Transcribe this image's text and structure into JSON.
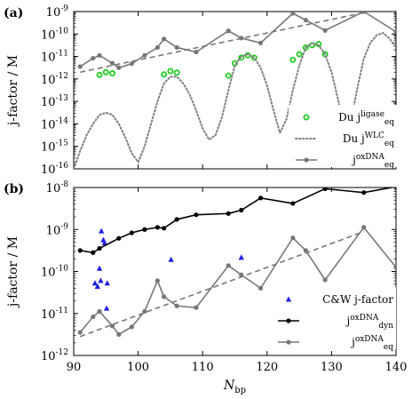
{
  "chart_data": [
    {
      "panel_label": "(a)",
      "type": "line",
      "ylabel": "j-factor / M",
      "xlabel": "",
      "xlim": [
        90,
        140
      ],
      "ylim_log10": [
        -16,
        -9
      ],
      "xscale": "linear",
      "yscale": "log",
      "x_ticks": [],
      "y_tick_labels": [
        "10^-16",
        "10^-15",
        "10^-14",
        "10^-13",
        "10^-12",
        "10^-11",
        "10^-10",
        "10^-9"
      ],
      "legend_position": "bottom-right",
      "series": [
        {
          "name": "Du j_eq^ligase",
          "legend_main": "Du j",
          "legend_sub": "eq",
          "legend_sup": "ligase",
          "style": "scatter-circle-open",
          "color": "#22cc22",
          "x": [
            94,
            95,
            96,
            104,
            105,
            106,
            114,
            115,
            116,
            117,
            118,
            124,
            125,
            126,
            127,
            128,
            129
          ],
          "y_log10": [
            -11.82,
            -11.7,
            -11.75,
            -11.8,
            -11.65,
            -11.72,
            -11.85,
            -11.3,
            -11.05,
            -10.95,
            -11.05,
            -11.15,
            -10.9,
            -10.6,
            -10.5,
            -10.45,
            -10.9
          ]
        },
        {
          "name": "Du j_eq^WLC",
          "legend_main": "Du j",
          "legend_sub": "eq",
          "legend_sup": "WLC",
          "style": "dotted",
          "color": "#808080",
          "x": [
            90,
            91,
            92,
            93,
            94,
            95,
            96,
            97,
            98,
            99,
            100,
            101,
            102,
            103,
            104,
            105,
            106,
            107,
            108,
            109,
            110,
            111,
            112,
            113,
            114,
            115,
            116,
            117,
            118,
            119,
            120,
            121,
            122,
            123,
            124,
            125,
            126,
            127,
            128,
            129,
            130,
            131,
            132,
            133,
            134,
            135,
            136,
            137,
            138,
            139,
            140
          ],
          "y_log10": [
            -16,
            -15.2,
            -14.5,
            -14.0,
            -13.6,
            -13.5,
            -13.6,
            -14.0,
            -14.6,
            -15.3,
            -15.7,
            -15.0,
            -14.0,
            -13.0,
            -12.2,
            -11.9,
            -11.9,
            -12.2,
            -12.7,
            -13.4,
            -14.2,
            -14.7,
            -14.5,
            -13.7,
            -12.5,
            -11.4,
            -11.0,
            -10.9,
            -11.05,
            -11.5,
            -12.3,
            -13.4,
            -14.4,
            -13.8,
            -12.5,
            -11.4,
            -10.6,
            -10.4,
            -10.5,
            -10.9,
            -11.7,
            -12.9,
            -14.2,
            -13.9,
            -12.4,
            -11.1,
            -10.4,
            -10.05,
            -9.95,
            -10.2,
            -10.6
          ]
        },
        {
          "name": "j_eq^oxDNA",
          "legend_main": "j",
          "legend_sub": "eq",
          "legend_sup": "oxDNA",
          "style": "line-marker",
          "color": "#777777",
          "x": [
            91,
            93,
            94,
            96,
            97,
            99,
            101,
            103,
            104,
            106,
            109,
            114,
            116,
            119,
            124,
            126,
            129,
            135,
            140
          ],
          "y_log10": [
            -11.45,
            -11.08,
            -10.95,
            -11.3,
            -11.5,
            -11.32,
            -10.95,
            -10.6,
            -10.22,
            -10.6,
            -10.8,
            -9.86,
            -10.18,
            -10.4,
            -9.08,
            -9.38,
            -9.84,
            -9.0,
            -9.9
          ]
        }
      ],
      "trend_line": {
        "style": "dashed",
        "color": "#777777",
        "x": [
          91,
          135
        ],
        "y_log10": [
          -11.7,
          -9.05
        ]
      }
    },
    {
      "panel_label": "(b)",
      "type": "line",
      "ylabel": "j-factor / M",
      "xlabel": "N_bp",
      "xlabel_main": "N",
      "xlabel_sub": "bp",
      "xlim": [
        90,
        140
      ],
      "ylim_log10": [
        -12,
        -8
      ],
      "xscale": "linear",
      "yscale": "log",
      "x_tick_labels": [
        "90",
        "100",
        "110",
        "120",
        "130",
        "140"
      ],
      "y_tick_labels": [
        "10^-12",
        "10^-11",
        "10^-10",
        "10^-9",
        "10^-8"
      ],
      "legend_position": "bottom-right",
      "series": [
        {
          "name": "C&W j-factor",
          "legend_main": "C&W j-factor",
          "style": "scatter-triangle",
          "color": "#1f1fe0",
          "x": [
            93.3,
            93.7,
            94.0,
            94.2,
            94.3,
            94.6,
            95.2,
            95.1,
            94.8,
            105.1,
            116.0
          ],
          "y_log10": [
            -10.28,
            -10.36,
            -9.93,
            -10.22,
            -9.04,
            -9.25,
            -10.28,
            -10.88,
            -9.32,
            -9.72,
            -9.67
          ]
        },
        {
          "name": "j_dyn^oxDNA",
          "legend_main": "j",
          "legend_sub": "dyn",
          "legend_sup": "oxDNA",
          "style": "line-marker",
          "color": "#000000",
          "x": [
            91,
            93,
            94,
            97,
            99,
            101,
            103,
            104,
            106,
            109,
            114,
            116,
            119,
            124,
            129,
            135,
            140
          ],
          "y_log10": [
            -9.5,
            -9.55,
            -9.45,
            -9.21,
            -9.08,
            -9.0,
            -8.95,
            -8.97,
            -8.76,
            -8.65,
            -8.62,
            -8.54,
            -8.25,
            -8.38,
            -8.03,
            -8.12,
            -7.98
          ]
        },
        {
          "name": "j_eq^oxDNA",
          "legend_main": "j",
          "legend_sub": "eq",
          "legend_sup": "oxDNA",
          "style": "line-marker",
          "color": "#777777",
          "x": [
            91,
            93,
            94,
            96,
            97,
            99,
            101,
            103,
            104,
            106,
            109,
            114,
            116,
            119,
            124,
            126,
            129,
            135,
            140
          ],
          "y_log10": [
            -11.45,
            -11.08,
            -10.95,
            -11.3,
            -11.5,
            -11.32,
            -10.95,
            -10.22,
            -10.6,
            -10.82,
            -10.86,
            -9.86,
            -10.08,
            -10.4,
            -9.2,
            -9.5,
            -10.2,
            -8.95,
            -9.9
          ]
        }
      ],
      "trend_line": {
        "style": "dashed",
        "color": "#777777",
        "x": [
          91,
          135
        ],
        "y_log10": [
          -11.55,
          -9.05
        ]
      }
    }
  ]
}
